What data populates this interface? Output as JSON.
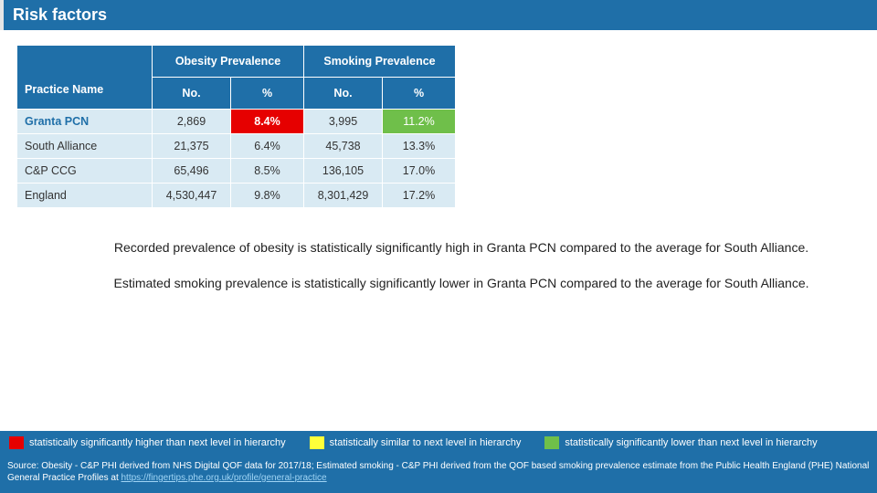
{
  "title": "Risk factors",
  "table": {
    "practice_header": "Practice Name",
    "groups": [
      "Obesity Prevalence",
      "Smoking Prevalence"
    ],
    "sub_headers": [
      "No.",
      "%"
    ],
    "rows": [
      {
        "name": "Granta PCN",
        "cells": [
          {
            "v": "2,869",
            "hl": ""
          },
          {
            "v": "8.4%",
            "hl": "red"
          },
          {
            "v": "3,995",
            "hl": ""
          },
          {
            "v": "11.2%",
            "hl": "green"
          }
        ]
      },
      {
        "name": "South Alliance",
        "cells": [
          {
            "v": "21,375",
            "hl": ""
          },
          {
            "v": "6.4%",
            "hl": ""
          },
          {
            "v": "45,738",
            "hl": ""
          },
          {
            "v": "13.3%",
            "hl": ""
          }
        ]
      },
      {
        "name": "C&P CCG",
        "cells": [
          {
            "v": "65,496",
            "hl": ""
          },
          {
            "v": "8.5%",
            "hl": ""
          },
          {
            "v": "136,105",
            "hl": ""
          },
          {
            "v": "17.0%",
            "hl": ""
          }
        ]
      },
      {
        "name": "England",
        "cells": [
          {
            "v": "4,530,447",
            "hl": ""
          },
          {
            "v": "9.8%",
            "hl": ""
          },
          {
            "v": "8,301,429",
            "hl": ""
          },
          {
            "v": "17.2%",
            "hl": ""
          }
        ]
      }
    ]
  },
  "notes": [
    "Recorded prevalence of obesity is statistically significantly high in Granta PCN compared to the average for South Alliance.",
    "Estimated smoking prevalence is statistically significantly lower in Granta PCN compared to the average for South Alliance."
  ],
  "legend": [
    {
      "color": "red",
      "label": "statistically significantly higher than next level in hierarchy"
    },
    {
      "color": "yellow",
      "label": "statistically similar to next level in hierarchy"
    },
    {
      "color": "green",
      "label": "statistically significantly lower than next level in hierarchy"
    }
  ],
  "source": {
    "prefix": "Source: Obesity - C&P PHI derived from NHS Digital QOF data for 2017/18;  Estimated smoking - C&P PHI derived from the QOF based smoking prevalence estimate from the Public Health England (PHE) National General Practice Profiles at ",
    "link_text": "https://fingertips.phe.org.uk/profile/general-practice"
  },
  "colors": {
    "primary": "#1f6fa8",
    "row_bg": "#d9eaf3",
    "red": "#e60000",
    "green": "#6fbf4a",
    "yellow": "#ffff3a"
  }
}
